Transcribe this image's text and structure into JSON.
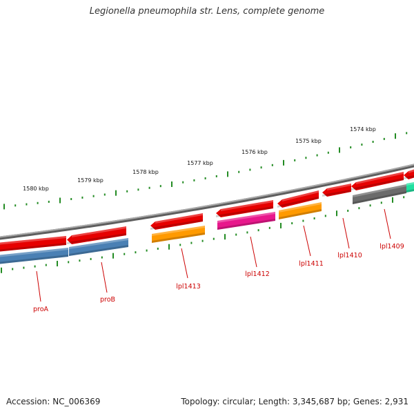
{
  "title": "Legionella pneumophila str. Lens, complete genome",
  "footer": {
    "accession": "Accession: NC_006369",
    "stats": "Topology: circular; Length: 3,345,687 bp; Genes: 2,931"
  },
  "colors": {
    "backbone": "#808080",
    "tick": "#228b22",
    "label_line": "#cc0000",
    "gene_label": "#cc0000",
    "red_feature": "#e60000",
    "blue_feature": "#4a80b4",
    "orange_feature": "#ff9a00",
    "pink_feature": "#e8188c",
    "gray_feature": "#6b6b6b",
    "teal_feature": "#20e0a0"
  },
  "scale_labels": [
    {
      "text": "1580 kbp",
      "kbp": 1580
    },
    {
      "text": "1579 kbp",
      "kbp": 1579
    },
    {
      "text": "1578 kbp",
      "kbp": 1578
    },
    {
      "text": "1577 kbp",
      "kbp": 1577
    },
    {
      "text": "1576 kbp",
      "kbp": 1576
    },
    {
      "text": "1575 kbp",
      "kbp": 1575
    },
    {
      "text": "1574 kbp",
      "kbp": 1574
    }
  ],
  "gene_labels": [
    {
      "text": "proA"
    },
    {
      "text": "proB"
    },
    {
      "text": "lpl1413"
    },
    {
      "text": "lpl1412"
    },
    {
      "text": "lpl1411"
    },
    {
      "text": "lpl1410"
    },
    {
      "text": "lpl1409"
    }
  ]
}
